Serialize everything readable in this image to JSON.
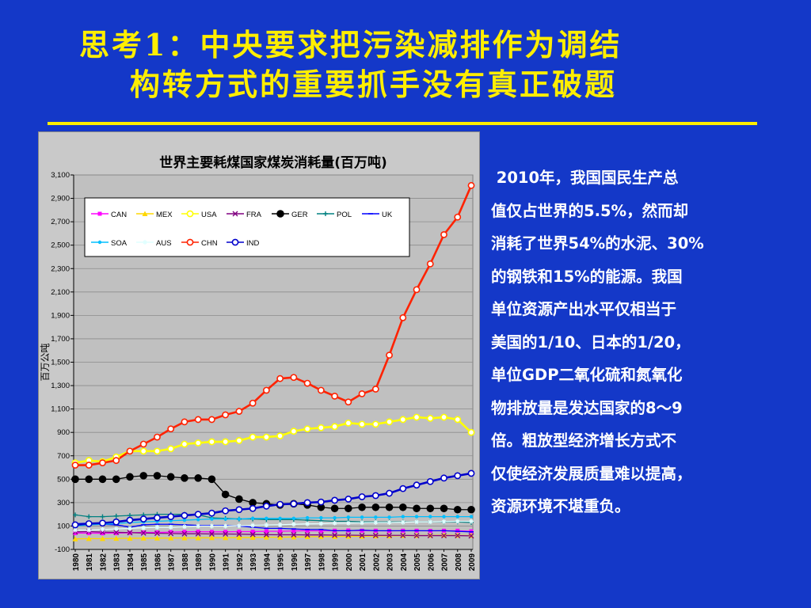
{
  "slide": {
    "title_line1": "思考1：中央要求把污染减排作为调结",
    "title_line2": "构转方式的重要抓手没有真正破题",
    "body_lines": [
      " 2010年，我国国民生产总",
      "值仅占世界的5.5%，然而却",
      "消耗了世界54%的水泥、30%",
      "的钢铁和15%的能源。我国",
      "单位资源产出水平仅相当于",
      "美国的1/10、日本的1/20，",
      "单位GDP二氧化硫和氮氧化",
      "物排放量是发达国家的8～9",
      "倍。粗放型经济增长方式不",
      "仅使经济发展质量难以提高，",
      "资源环境不堪重负。"
    ]
  },
  "chart_data": {
    "type": "line",
    "title": "世界主要耗煤国家煤炭消耗量(百万吨)",
    "ylabel": "百万公吨",
    "xlabel": "",
    "ylim": [
      -100,
      3100
    ],
    "yticks": [
      -100,
      100,
      300,
      500,
      700,
      900,
      1100,
      1300,
      1500,
      1700,
      1900,
      2100,
      2300,
      2500,
      2700,
      2900,
      3100
    ],
    "ytick_labels": [
      "-100",
      "100",
      "300",
      "500",
      "700",
      "900",
      "1,100",
      "1,300",
      "1,500",
      "1,700",
      "1,900",
      "2,100",
      "2,300",
      "2,500",
      "2,700",
      "2,900",
      "3,100"
    ],
    "x": [
      "1980",
      "1981",
      "1982",
      "1983",
      "1984",
      "1985",
      "1986",
      "1987",
      "1988",
      "1989",
      "1990",
      "1991",
      "1992",
      "1993",
      "1994",
      "1995",
      "1996",
      "1997",
      "1998",
      "1999",
      "2000",
      "2001",
      "2002",
      "2003",
      "2004",
      "2005",
      "2006",
      "2007",
      "2008",
      "2009"
    ],
    "grid": true,
    "legend_position": "top-left",
    "series": [
      {
        "name": "CAN",
        "color": "#ff00ff",
        "marker": "square",
        "values": [
          40,
          40,
          38,
          40,
          42,
          45,
          45,
          48,
          50,
          52,
          50,
          50,
          52,
          52,
          55,
          55,
          58,
          60,
          58,
          60,
          62,
          60,
          60,
          58,
          60,
          60,
          58,
          60,
          60,
          55
        ]
      },
      {
        "name": "MEX",
        "color": "#ffd700",
        "marker": "triangle",
        "values": [
          -10,
          -8,
          -8,
          -6,
          -5,
          -4,
          -4,
          -3,
          -2,
          -2,
          0,
          0,
          2,
          2,
          4,
          4,
          6,
          8,
          10,
          10,
          12,
          12,
          15,
          15,
          18,
          18,
          20,
          22,
          20,
          18
        ]
      },
      {
        "name": "USA",
        "color": "#ffff00",
        "marker": "circle",
        "values": [
          640,
          660,
          650,
          690,
          740,
          740,
          740,
          760,
          800,
          810,
          820,
          820,
          830,
          860,
          860,
          870,
          910,
          930,
          940,
          950,
          980,
          970,
          970,
          990,
          1010,
          1030,
          1020,
          1030,
          1010,
          900
        ]
      },
      {
        "name": "FRA",
        "color": "#800080",
        "marker": "x",
        "values": [
          50,
          52,
          48,
          46,
          44,
          40,
          38,
          36,
          34,
          34,
          32,
          32,
          30,
          28,
          26,
          25,
          25,
          24,
          24,
          22,
          22,
          20,
          20,
          20,
          20,
          18,
          18,
          18,
          18,
          16
        ]
      },
      {
        "name": "GER",
        "color": "#000000",
        "marker": "dot",
        "values": [
          500,
          500,
          500,
          500,
          520,
          530,
          530,
          520,
          510,
          510,
          500,
          370,
          330,
          300,
          290,
          280,
          290,
          280,
          260,
          250,
          250,
          260,
          260,
          260,
          260,
          250,
          250,
          250,
          240,
          240
        ]
      },
      {
        "name": "POL",
        "color": "#008080",
        "marker": "plus",
        "values": [
          195,
          180,
          180,
          185,
          190,
          195,
          200,
          200,
          200,
          195,
          170,
          165,
          160,
          160,
          155,
          155,
          155,
          150,
          145,
          140,
          140,
          135,
          135,
          135,
          135,
          135,
          135,
          135,
          135,
          130
        ]
      },
      {
        "name": "UK",
        "color": "#0000ff",
        "marker": "dash",
        "values": [
          120,
          125,
          115,
          110,
          90,
          110,
          115,
          115,
          110,
          105,
          105,
          105,
          100,
          90,
          80,
          80,
          75,
          70,
          70,
          60,
          60,
          65,
          60,
          60,
          60,
          60,
          60,
          60,
          55,
          50
        ]
      },
      {
        "name": "SOA",
        "color": "#00bfff",
        "marker": "circle-small",
        "values": [
          100,
          110,
          115,
          120,
          130,
          135,
          140,
          145,
          150,
          155,
          160,
          160,
          160,
          165,
          165,
          165,
          165,
          170,
          170,
          170,
          175,
          175,
          175,
          175,
          180,
          180,
          180,
          180,
          180,
          180
        ]
      },
      {
        "name": "AUS",
        "color": "#e0ffff",
        "marker": "star",
        "values": [
          65,
          65,
          70,
          75,
          80,
          85,
          90,
          90,
          95,
          100,
          100,
          100,
          102,
          105,
          108,
          110,
          115,
          118,
          120,
          125,
          125,
          128,
          130,
          130,
          132,
          135,
          135,
          138,
          140,
          140
        ]
      },
      {
        "name": "CHN",
        "color": "#ff2200",
        "marker": "circle",
        "values": [
          620,
          620,
          640,
          660,
          740,
          800,
          860,
          930,
          990,
          1010,
          1010,
          1050,
          1080,
          1150,
          1260,
          1360,
          1370,
          1320,
          1260,
          1210,
          1160,
          1230,
          1270,
          1560,
          1880,
          2120,
          2340,
          2590,
          2740,
          3010
        ]
      },
      {
        "name": "IND",
        "color": "#0000cc",
        "marker": "circle",
        "values": [
          110,
          120,
          125,
          135,
          150,
          160,
          170,
          180,
          190,
          200,
          210,
          230,
          240,
          250,
          270,
          285,
          290,
          300,
          305,
          320,
          330,
          350,
          360,
          380,
          420,
          450,
          480,
          510,
          530,
          550
        ]
      }
    ]
  }
}
